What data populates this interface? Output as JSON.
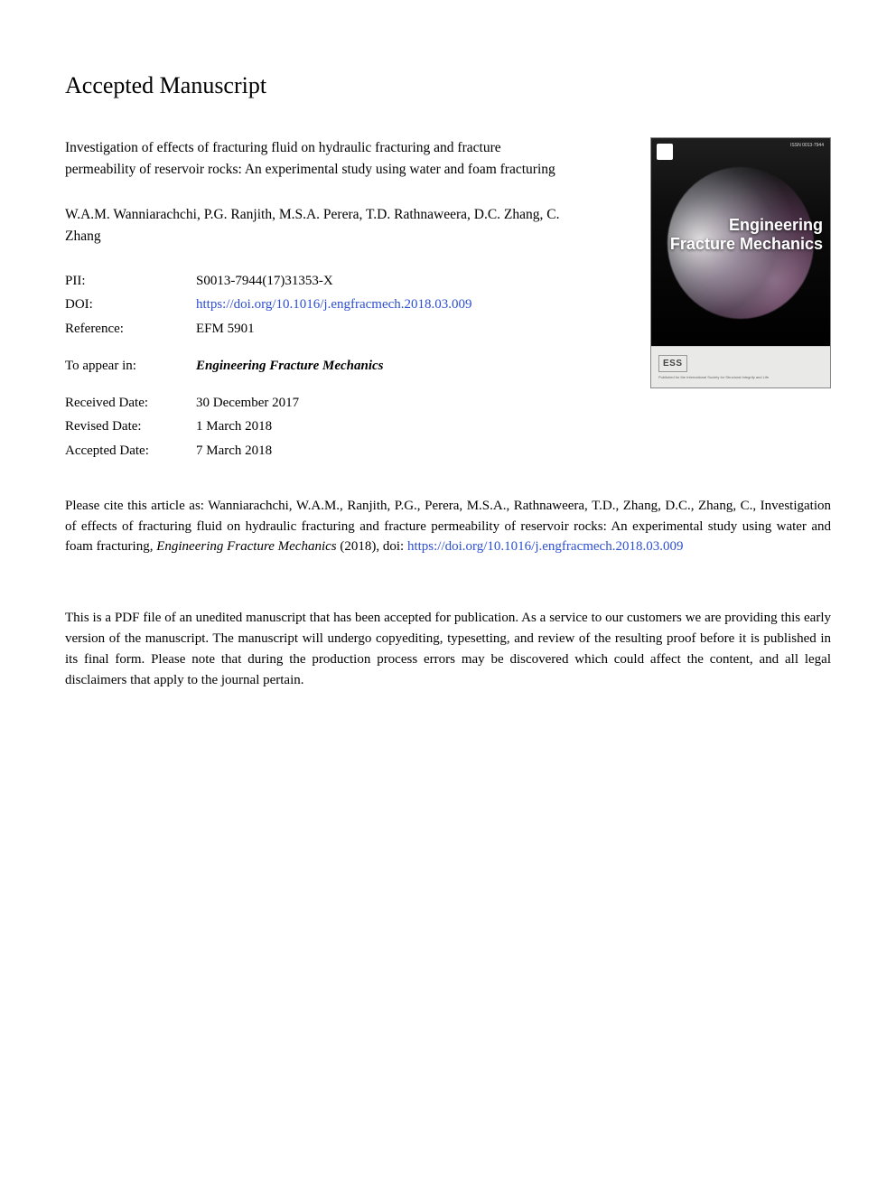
{
  "heading": "Accepted Manuscript",
  "article_title": "Investigation of effects of fracturing fluid on hydraulic fracturing and fracture permeability of reservoir rocks: An experimental study using water and foam fracturing",
  "authors": "W.A.M. Wanniarachchi, P.G. Ranjith, M.S.A. Perera, T.D. Rathnaweera, D.C. Zhang, C. Zhang",
  "meta_ids": {
    "pii": {
      "label": "PII:",
      "value": "S0013-7944(17)31353-X"
    },
    "doi": {
      "label": "DOI:",
      "value": "https://doi.org/10.1016/j.engfracmech.2018.03.009"
    },
    "reference": {
      "label": "Reference:",
      "value": "EFM 5901"
    }
  },
  "appear": {
    "label": "To appear in:",
    "value": "Engineering Fracture Mechanics"
  },
  "dates": {
    "received": {
      "label": "Received Date:",
      "value": "30 December 2017"
    },
    "revised": {
      "label": "Revised Date:",
      "value": "1 March 2018"
    },
    "accepted": {
      "label": "Accepted Date:",
      "value": "7 March 2018"
    }
  },
  "citation": {
    "prefix": "Please cite this article as: Wanniarachchi, W.A.M., Ranjith, P.G., Perera, M.S.A., Rathnaweera, T.D., Zhang, D.C., Zhang, C., Investigation of effects of fracturing fluid on hydraulic fracturing and fracture permeability of reservoir rocks: An experimental study using water and foam fracturing, ",
    "journal": "Engineering Fracture Mechanics",
    "year": " (2018), doi: ",
    "link1": "https://",
    "link2": "doi.org/10.1016/j.engfracmech.2018.03.009"
  },
  "disclaimer": "This is a PDF file of an unedited manuscript that has been accepted for publication. As a service to our customers we are providing this early version of the manuscript. The manuscript will undergo copyediting, typesetting, and review of the resulting proof before it is published in its final form. Please note that during the production process errors may be discovered which could affect the content, and all legal disclaimers that apply to the journal pertain.",
  "cover": {
    "journal_line1": "Engineering",
    "journal_line2": "Fracture Mechanics",
    "issn": "ISSN 0013-7944",
    "ess": "ESS",
    "fine": "Published for the International Society for Structural Integrity and Life"
  },
  "colors": {
    "link": "#2d4fd1",
    "text": "#000000",
    "background": "#ffffff",
    "cover_bg_dark": "#111111",
    "cover_bottom": "#e9e9e7"
  },
  "typography": {
    "body_font": "Georgia, Times New Roman, serif",
    "heading_fontsize": 26,
    "body_fontsize": 15
  }
}
